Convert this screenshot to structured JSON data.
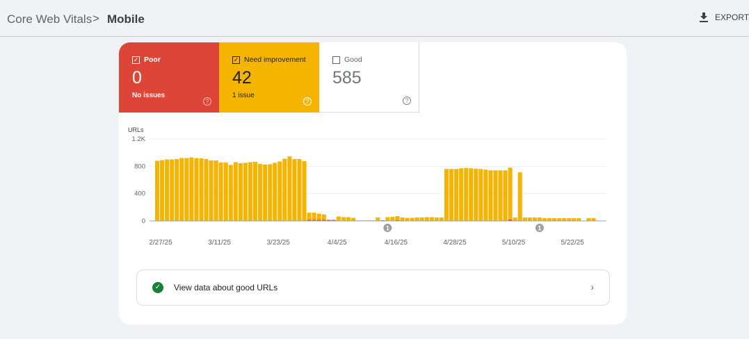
{
  "breadcrumb": {
    "root": "Core Web Vitals",
    "separator": ">",
    "current": "Mobile"
  },
  "toolbar": {
    "export_label": "EXPORT",
    "export_icon": "download-icon"
  },
  "tiles": {
    "poor": {
      "label": "Poor",
      "count": "0",
      "sub": "No issues",
      "checked": true,
      "color": "#dd4538"
    },
    "need": {
      "label": "Need improvement",
      "count": "42",
      "sub": "1 issue",
      "checked": true,
      "color": "#f4b400"
    },
    "good": {
      "label": "Good",
      "count": "585",
      "checked": false
    }
  },
  "help_glyph": "?",
  "chart_data": {
    "type": "bar",
    "stacked": true,
    "ylabel": "URLs",
    "ylim": [
      0,
      1200
    ],
    "yticks": [
      {
        "v": 0,
        "label": "0"
      },
      {
        "v": 400,
        "label": "400"
      },
      {
        "v": 800,
        "label": "800"
      },
      {
        "v": 1200,
        "label": "1.2K"
      }
    ],
    "start_date": "2/27/25",
    "xtick_labels": [
      {
        "i": 0,
        "label": "2/27/25"
      },
      {
        "i": 12,
        "label": "3/11/25"
      },
      {
        "i": 24,
        "label": "3/23/25"
      },
      {
        "i": 36,
        "label": "4/4/25"
      },
      {
        "i": 48,
        "label": "4/16/25"
      },
      {
        "i": 60,
        "label": "4/28/25"
      },
      {
        "i": 72,
        "label": "5/10/25"
      },
      {
        "i": 84,
        "label": "5/22/25"
      }
    ],
    "series": [
      {
        "name": "Need improvement",
        "color": "#f4b400",
        "values": [
          880,
          890,
          900,
          900,
          905,
          920,
          920,
          930,
          920,
          915,
          905,
          885,
          885,
          855,
          855,
          820,
          860,
          845,
          850,
          860,
          865,
          835,
          825,
          830,
          850,
          870,
          910,
          945,
          905,
          905,
          875,
          105,
          105,
          90,
          80,
          0,
          0,
          65,
          55,
          55,
          45,
          8,
          8,
          8,
          8,
          50,
          0,
          50,
          60,
          60,
          50,
          45,
          45,
          50,
          50,
          55,
          55,
          50,
          50,
          760,
          760,
          760,
          770,
          775,
          770,
          765,
          760,
          750,
          740,
          740,
          740,
          740,
          760,
          50,
          710,
          50,
          50,
          50,
          50,
          40,
          40,
          40,
          40,
          40,
          40,
          40,
          40,
          0,
          40,
          40
        ]
      },
      {
        "name": "Poor",
        "color": "#dd4538",
        "values": [
          0,
          0,
          0,
          0,
          0,
          0,
          0,
          0,
          0,
          0,
          0,
          0,
          0,
          0,
          0,
          0,
          0,
          0,
          0,
          0,
          0,
          0,
          0,
          0,
          0,
          0,
          0,
          0,
          0,
          0,
          0,
          15,
          15,
          15,
          15,
          15,
          15,
          0,
          0,
          0,
          0,
          0,
          0,
          0,
          0,
          0,
          10,
          5,
          0,
          10,
          0,
          0,
          0,
          0,
          0,
          0,
          0,
          0,
          0,
          0,
          0,
          0,
          0,
          0,
          0,
          0,
          0,
          0,
          0,
          0,
          0,
          0,
          20,
          0,
          0,
          0,
          0,
          0,
          0,
          0,
          0,
          0,
          0,
          0,
          0,
          0,
          0,
          0,
          0,
          0
        ]
      }
    ],
    "annotations": [
      {
        "i": 47,
        "label": "1"
      },
      {
        "i": 78,
        "label": "1"
      }
    ]
  },
  "good_link": {
    "label": "View data about good URLs"
  }
}
